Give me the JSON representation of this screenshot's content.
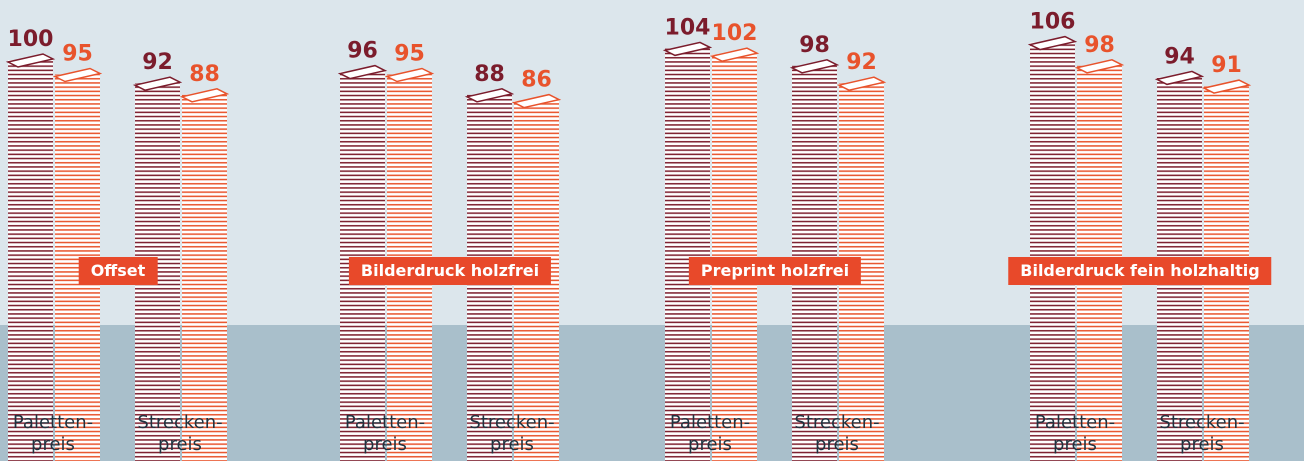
{
  "chart_data": [
    {
      "type": "bar",
      "title": "Offset",
      "categories": [
        "Paletten-\npreis",
        "Strecken-\npreis"
      ],
      "series": [
        {
          "color": "#7b1c2c",
          "values": [
            100,
            92
          ]
        },
        {
          "color": "#e8532c",
          "values": [
            95,
            88
          ]
        }
      ]
    },
    {
      "type": "bar",
      "title": "Bilderdruck holzfrei",
      "categories": [
        "Paletten-\npreis",
        "Strecken-\npreis"
      ],
      "series": [
        {
          "color": "#7b1c2c",
          "values": [
            96,
            88
          ]
        },
        {
          "color": "#e8532c",
          "values": [
            95,
            86
          ]
        }
      ]
    },
    {
      "type": "bar",
      "title": "Preprint holzfrei",
      "categories": [
        "Paletten-\npreis",
        "Strecken-\npreis"
      ],
      "series": [
        {
          "color": "#7b1c2c",
          "values": [
            104,
            98
          ]
        },
        {
          "color": "#e8532c",
          "values": [
            102,
            92
          ]
        }
      ]
    },
    {
      "type": "bar",
      "title": "Bilderdruck fein holzhaltig",
      "categories": [
        "Paletten-\npreis",
        "Strecken-\npreis"
      ],
      "series": [
        {
          "color": "#7b1c2c",
          "values": [
            106,
            94
          ]
        },
        {
          "color": "#e8532c",
          "values": [
            98,
            91
          ]
        }
      ]
    }
  ]
}
